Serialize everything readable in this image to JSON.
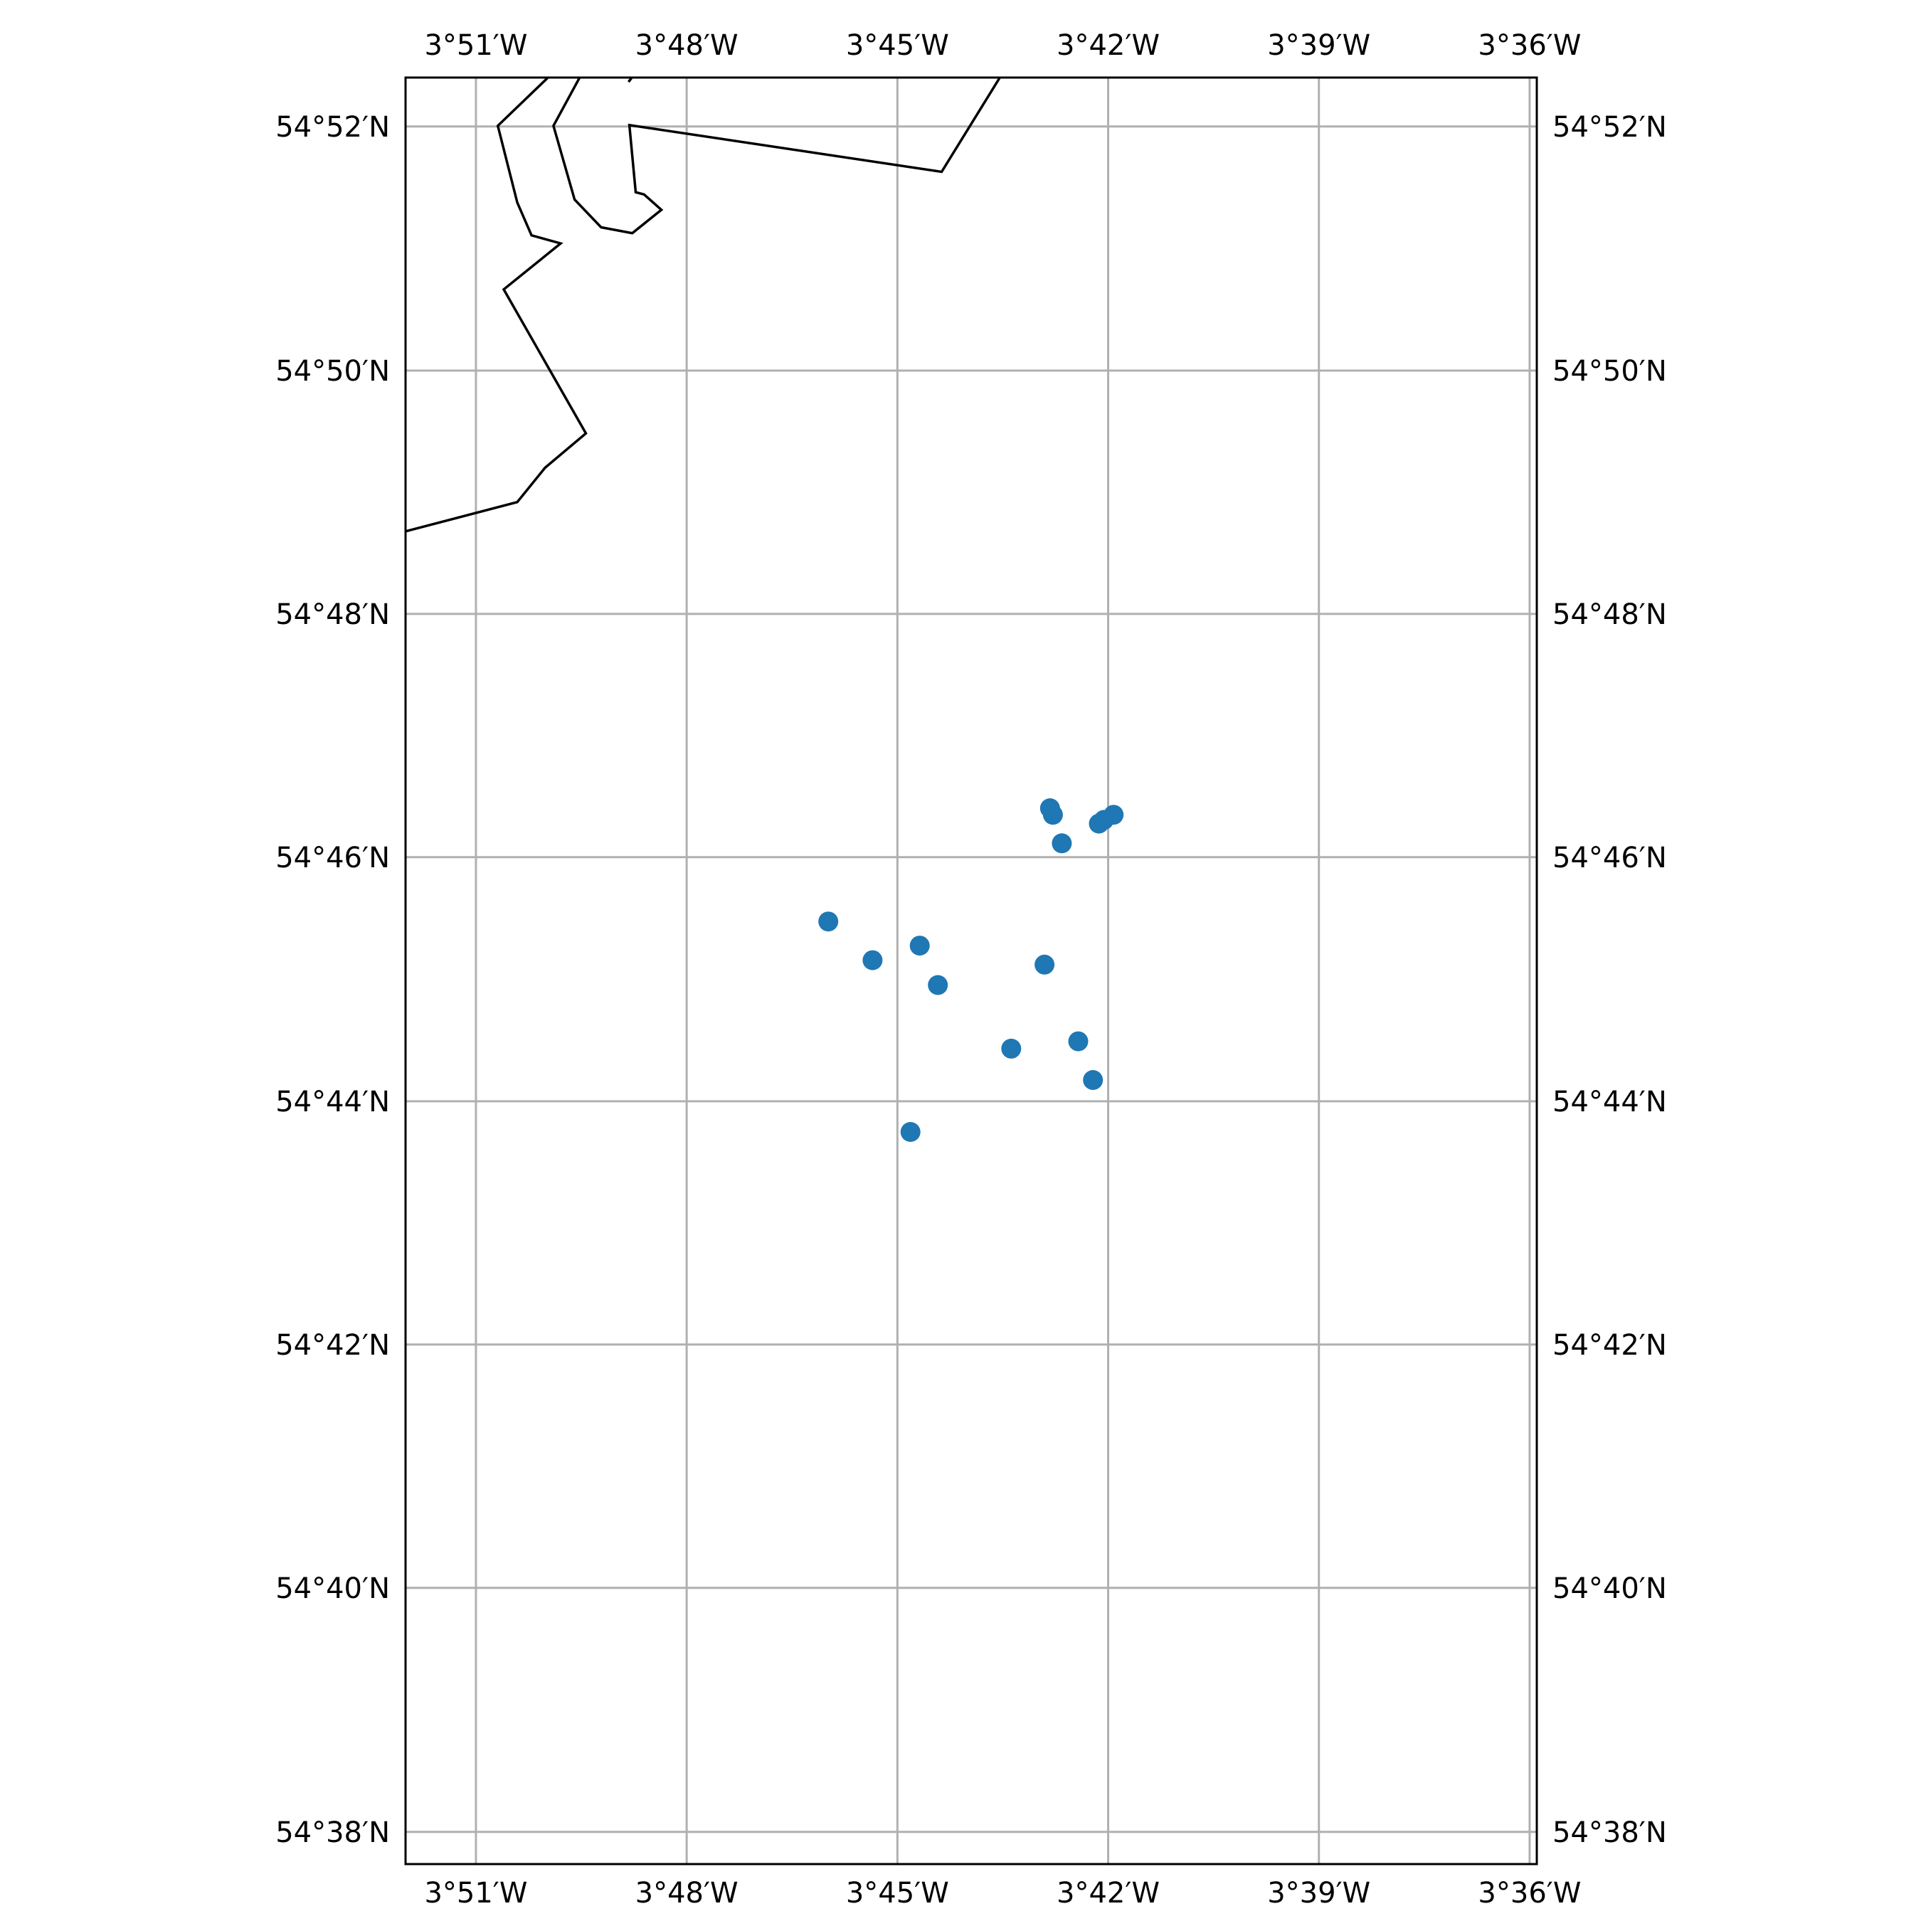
{
  "chart_data": {
    "type": "scatter",
    "title": "",
    "xlabel": "",
    "ylabel": "",
    "xlim": [
      -3.8667,
      -3.5983
    ],
    "ylim": [
      54.6289,
      54.8734
    ],
    "grid": true,
    "marker_color": "#1f77b4",
    "x_ticks": [
      {
        "value": -3.85,
        "label": "3°51′W"
      },
      {
        "value": -3.8,
        "label": "3°48′W"
      },
      {
        "value": -3.75,
        "label": "3°45′W"
      },
      {
        "value": -3.7,
        "label": "3°42′W"
      },
      {
        "value": -3.65,
        "label": "3°39′W"
      },
      {
        "value": -3.6,
        "label": "3°36′W"
      }
    ],
    "y_ticks": [
      {
        "value": 54.8667,
        "label": "54°52′N"
      },
      {
        "value": 54.8333,
        "label": "54°50′N"
      },
      {
        "value": 54.8,
        "label": "54°48′N"
      },
      {
        "value": 54.7667,
        "label": "54°46′N"
      },
      {
        "value": 54.7333,
        "label": "54°44′N"
      },
      {
        "value": 54.7,
        "label": "54°42′N"
      },
      {
        "value": 54.6667,
        "label": "54°40′N"
      },
      {
        "value": 54.6333,
        "label": "54°38′N"
      }
    ],
    "points": [
      {
        "lon": -3.7138,
        "lat": 54.7734
      },
      {
        "lon": -3.7131,
        "lat": 54.7725
      },
      {
        "lon": -3.7022,
        "lat": 54.7713
      },
      {
        "lon": -3.701,
        "lat": 54.7718
      },
      {
        "lon": -3.6987,
        "lat": 54.7725
      },
      {
        "lon": -3.711,
        "lat": 54.7686
      },
      {
        "lon": -3.7664,
        "lat": 54.7579
      },
      {
        "lon": -3.7559,
        "lat": 54.7526
      },
      {
        "lon": -3.7447,
        "lat": 54.7546
      },
      {
        "lon": -3.7151,
        "lat": 54.752
      },
      {
        "lon": -3.7404,
        "lat": 54.7492
      },
      {
        "lon": -3.723,
        "lat": 54.7405
      },
      {
        "lon": -3.7071,
        "lat": 54.7415
      },
      {
        "lon": -3.7036,
        "lat": 54.7362
      },
      {
        "lon": -3.7469,
        "lat": 54.7291
      }
    ],
    "coastlines": [
      [
        [
          -3.8329,
          54.8734
        ],
        [
          -3.8448,
          54.8668
        ],
        [
          -3.8402,
          54.8563
        ],
        [
          -3.8368,
          54.8518
        ],
        [
          -3.8299,
          54.8507
        ],
        [
          -3.8434,
          54.8444
        ],
        [
          -3.8239,
          54.8247
        ],
        [
          -3.8336,
          54.82
        ],
        [
          -3.8402,
          54.8153
        ],
        [
          -3.8667,
          54.8113
        ]
      ],
      [
        [
          -3.8254,
          54.8734
        ],
        [
          -3.8316,
          54.8668
        ],
        [
          -3.8266,
          54.8567
        ],
        [
          -3.8203,
          54.8529
        ],
        [
          -3.8129,
          54.8521
        ],
        [
          -3.806,
          54.8553
        ],
        [
          -3.8101,
          54.8574
        ],
        [
          -3.8121,
          54.8577
        ],
        [
          -3.8136,
          54.8669
        ],
        [
          -3.7395,
          54.8605
        ],
        [
          -3.7257,
          54.8734
        ]
      ],
      [
        [
          -3.8138,
          54.8728
        ],
        [
          -3.813,
          54.8734
        ]
      ]
    ]
  }
}
